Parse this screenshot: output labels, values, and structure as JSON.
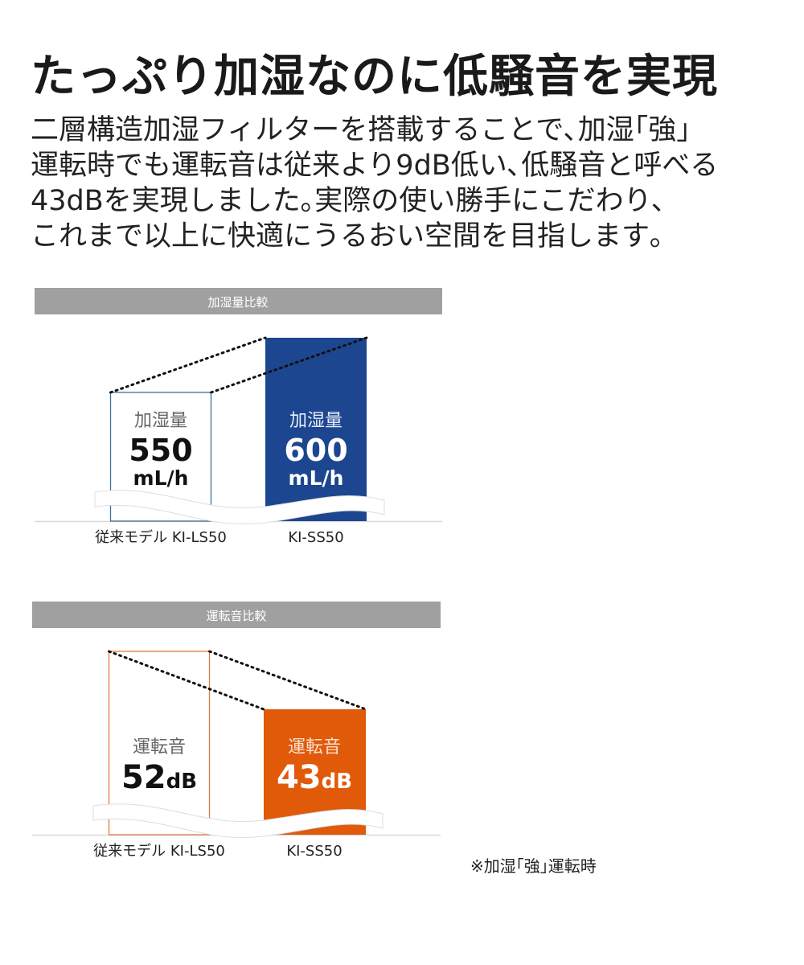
{
  "title": "たっぷり加湿なのに低騒音を実現",
  "description_lines": [
    "二層構造加湿フィルターを搭載することで､加湿｢強｣",
    "運転時でも運転音は従来より9dB低い､低騒音と呼べる",
    "43dBを実現しました｡実際の使い勝手にこだわり､",
    "これまで以上に快適にうるおい空間を目指します｡"
  ],
  "note": "※加湿｢強｣運転時",
  "chart_data": [
    {
      "type": "bar",
      "title": "加湿量比較",
      "categories": [
        "従来モデル KI-LS50",
        "KI-SS50"
      ],
      "values": [
        550,
        600
      ],
      "bar_label": "加湿量",
      "value_labels": [
        "550",
        "600"
      ],
      "unit": "mL/h",
      "axis_break": true,
      "colors": {
        "previous": "#3f6f96",
        "current": "#1c4690",
        "header": "#a0a0a0"
      }
    },
    {
      "type": "bar",
      "title": "運転音比較",
      "categories": [
        "従来モデル KI-LS50",
        "KI-SS50"
      ],
      "values": [
        52,
        43
      ],
      "bar_label": "運転音",
      "value_labels": [
        "52",
        "43"
      ],
      "unit": "dB",
      "axis_break": true,
      "colors": {
        "previous": "#e07a40",
        "current": "#e05a0a",
        "header": "#a0a0a0"
      }
    }
  ]
}
